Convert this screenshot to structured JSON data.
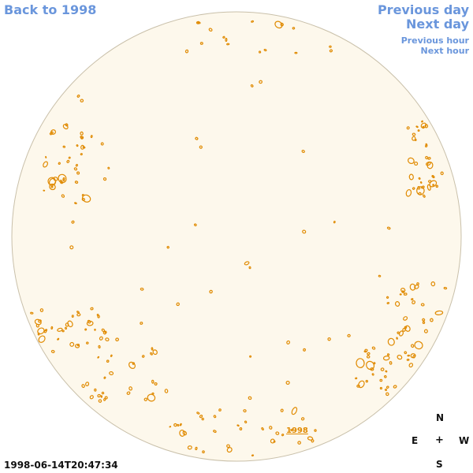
{
  "nav": {
    "back": "Back to 1998",
    "previous_day": "Previous day",
    "next_day": "Next day",
    "previous_hour": "Previous hour",
    "next_hour": "Next hour"
  },
  "disk": {
    "year_label": "1998",
    "fill_color": "#fdf8ec",
    "border_color": "#c9c0aa",
    "feature_color": "#e08a00"
  },
  "compass": {
    "north": "N",
    "east": "E",
    "center": "+",
    "west": "W",
    "south": "S"
  },
  "timestamp": "1998-06-14T20:47:34"
}
